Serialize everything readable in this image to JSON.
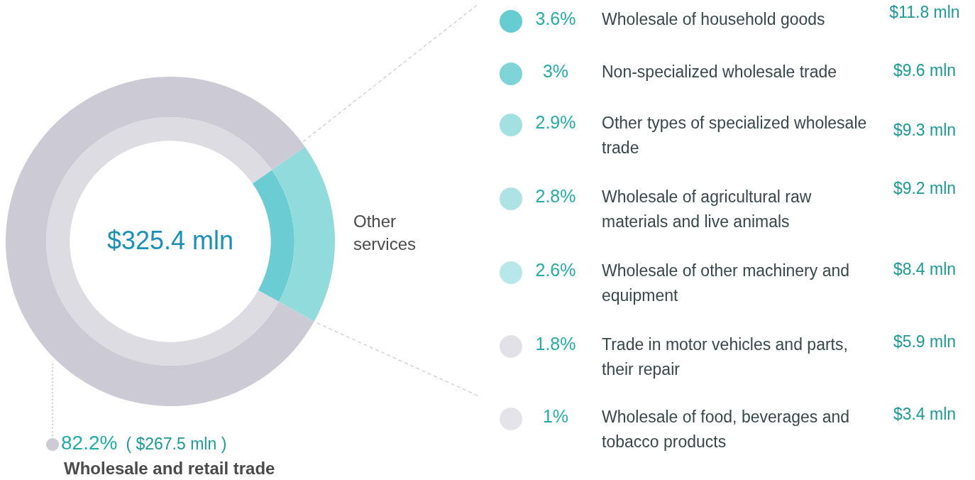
{
  "chart_data": [
    {
      "type": "donut",
      "categories": [
        "Wholesale and retail trade",
        "Other services"
      ],
      "series": [
        {
          "values": [
            82.2,
            17.8
          ],
          "colors": [
            "#dedce3",
            "#6bcdd3"
          ]
        },
        {
          "values": [
            82.2,
            17.8
          ],
          "colors": [
            "#cbcad5",
            "#91dbdd"
          ],
          "value_labels": [
            "82.2%",
            null
          ]
        }
      ],
      "annotations": [
        "$325.4 mln",
        "( $267.5 mln )"
      ],
      "legend": "bottom left"
    },
    {
      "type": "other",
      "categories": [
        "Wholesale of household goods",
        "Non-specialized wholesale trade",
        "Other types of specialized wholesale trade",
        "Wholesale of agricultural raw materials and live animals",
        "Wholesale of other machinery and equipment",
        "Trade in motor vehicles and parts, their repair",
        "Wholesale of food, beverages and tobacco products"
      ],
      "series": [
        {
          "values": [
            3.6,
            3,
            2.9,
            2.8,
            2.6,
            1.8,
            1
          ],
          "value_labels": [
            "3.6%",
            "3%",
            "2.9%",
            "2.8%",
            "2.6%",
            "1.8%",
            "1%"
          ],
          "colors": [
            "#66ccd1",
            "#7fd4d8",
            "#a3e0e2",
            "#aee3e5",
            "#b7e7e8",
            "#e2e1e8",
            "#e4e3ea"
          ]
        },
        {
          "values": [
            11.8,
            9.6,
            9.3,
            9.2,
            8.4,
            5.9,
            3.4
          ],
          "value_labels": [
            "$11.8 mln",
            "$9.6 mln",
            "$9.3 mln",
            "$9.2 mln",
            "$8.4 mln",
            "$5.9 mln",
            "$3.4 mln"
          ]
        }
      ]
    }
  ]
}
